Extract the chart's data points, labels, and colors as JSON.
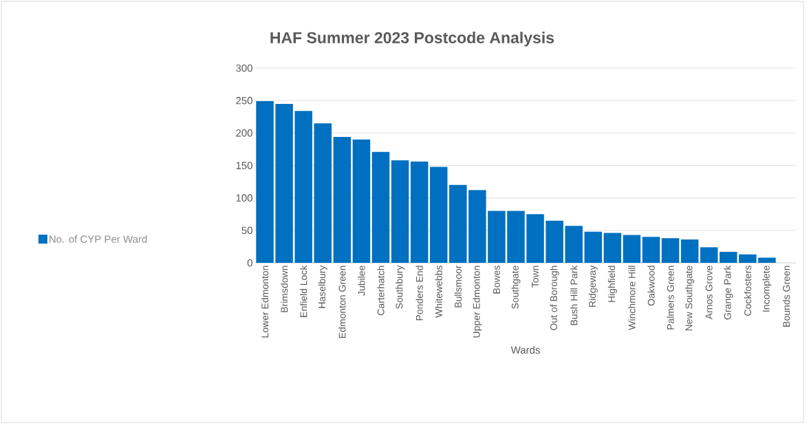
{
  "chart_data": {
    "type": "bar",
    "title": "HAF Summer 2023 Postcode Analysis",
    "xlabel": "Wards",
    "categories": [
      "Lower Edmonton",
      "Brimsdown",
      "Enfield Lock",
      "Haselbury",
      "Edmonton Green",
      "Jubilee",
      "Carterhatch",
      "Southbury",
      "Ponders End",
      "Whitewebbs",
      "Bullsmoor",
      "Upper Edmonton",
      "Bowes",
      "Southgate",
      "Town",
      "Out of Borough",
      "Bush Hill Park",
      "Ridgeway",
      "Highfield",
      "Winchmore Hill",
      "Oakwood",
      "Palmers Green",
      "New Southgate",
      "Arnos Grove",
      "Grange Park",
      "Cockfosters",
      "Incomplete",
      "Bounds Green"
    ],
    "series": [
      {
        "name": "No. of CYP Per Ward",
        "color": "#0070c0",
        "values": [
          249,
          245,
          234,
          215,
          194,
          190,
          171,
          158,
          156,
          148,
          120,
          112,
          80,
          80,
          75,
          65,
          57,
          48,
          46,
          43,
          40,
          38,
          36,
          24,
          17,
          13,
          8,
          0
        ]
      }
    ],
    "ylim": [
      0,
      300
    ],
    "yticks": [
      0,
      50,
      100,
      150,
      200,
      250,
      300
    ],
    "grid": "y",
    "legend": "left"
  }
}
